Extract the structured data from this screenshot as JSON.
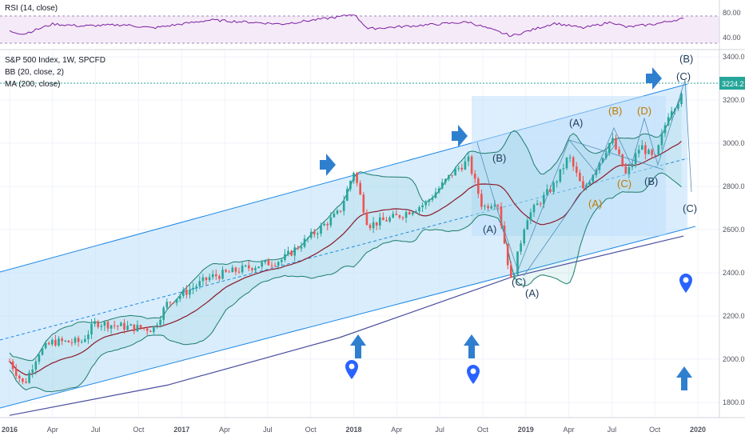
{
  "rsi_panel": {
    "label": "RSI (14, close)",
    "y_ticks": [
      "80.00",
      "40.00"
    ]
  },
  "main_panel": {
    "title": "S&P 500 Index, 1W, SPCFD",
    "bb_label": "BB (20, close, 2)",
    "ma_label": "MA (200, close)",
    "price_tag": "3224.2",
    "y_ticks": [
      "3400.0",
      "3200.0",
      "3000.0",
      "2800.0",
      "2600.0",
      "2400.0",
      "2200.0",
      "2000.0",
      "1800.0"
    ],
    "x_ticks": [
      "2016",
      "Apr",
      "Jul",
      "Oct",
      "2017",
      "Apr",
      "Jul",
      "Oct",
      "2018",
      "Apr",
      "Jul",
      "Oct",
      "2019",
      "Apr",
      "Jul",
      "Oct",
      "2020"
    ]
  },
  "wave_labels": {
    "green_a_low": "(A)",
    "green_c_low": "(C)",
    "green_a_low2": "(A)",
    "green_b_2018": "(B)",
    "green_a_2018": "(A)",
    "blue_a_2019": "(A)",
    "orange_b": "(B)",
    "orange_d": "(D)",
    "orange_a": "(A)",
    "orange_c": "(C)",
    "orange_e_b": "(B)",
    "top_b": "(B)",
    "top_c": "(C)",
    "target_c": "(C)"
  },
  "colors": {
    "price_up": "#26a69a",
    "price_down": "#ef5350",
    "bb": "#1b7d6b",
    "ma": "#2962ff",
    "channel": "#1e88e5",
    "annotation": "#2f7fcf",
    "wave_orange": "#c07a00",
    "wave_dark": "#1f3b5a",
    "rsi_line": "#7b1fa2",
    "rsi_band": "#f3e5f5"
  },
  "chart_data": {
    "type": "line",
    "title": "S&P 500 Index, 1W, SPCFD",
    "x_unit": "weekly, Jan 2016 to Dec 2019",
    "ylim": [
      1700,
      3400
    ],
    "x_range": [
      "2016-01",
      "2019-12"
    ],
    "series": [
      {
        "name": "S&P 500",
        "points": [
          [
            "2016-01",
            1990
          ],
          [
            "2016-02",
            1880
          ],
          [
            "2016-03",
            2030
          ],
          [
            "2016-04",
            2080
          ],
          [
            "2016-06",
            2080
          ],
          [
            "2016-07",
            2170
          ],
          [
            "2016-09",
            2150
          ],
          [
            "2016-11",
            2140
          ],
          [
            "2016-12",
            2260
          ],
          [
            "2017-03",
            2380
          ],
          [
            "2017-06",
            2430
          ],
          [
            "2017-08",
            2460
          ],
          [
            "2017-10",
            2570
          ],
          [
            "2017-12",
            2680
          ],
          [
            "2018-01",
            2870
          ],
          [
            "2018-02",
            2620
          ],
          [
            "2018-04",
            2660
          ],
          [
            "2018-06",
            2720
          ],
          [
            "2018-08",
            2870
          ],
          [
            "2018-09",
            2920
          ],
          [
            "2018-10",
            2700
          ],
          [
            "2018-11",
            2740
          ],
          [
            "2018-12",
            2350
          ],
          [
            "2019-01",
            2650
          ],
          [
            "2019-03",
            2810
          ],
          [
            "2019-04",
            2940
          ],
          [
            "2019-05",
            2780
          ],
          [
            "2019-07",
            3020
          ],
          [
            "2019-08",
            2850
          ],
          [
            "2019-09",
            2990
          ],
          [
            "2019-10",
            2920
          ],
          [
            "2019-11",
            3150
          ],
          [
            "2019-12",
            3224
          ]
        ]
      },
      {
        "name": "MA (200, close)",
        "points": [
          [
            "2016-01",
            1740
          ],
          [
            "2016-12",
            1880
          ],
          [
            "2017-12",
            2100
          ],
          [
            "2018-12",
            2380
          ],
          [
            "2019-12",
            2570
          ]
        ]
      }
    ],
    "rsi": [
      [
        "2016-01",
        42
      ],
      [
        "2016-02",
        35
      ],
      [
        "2016-04",
        60
      ],
      [
        "2016-06",
        55
      ],
      [
        "2016-09",
        58
      ],
      [
        "2016-11",
        50
      ],
      [
        "2017-03",
        70
      ],
      [
        "2017-08",
        60
      ],
      [
        "2017-12",
        78
      ],
      [
        "2018-01",
        85
      ],
      [
        "2018-02",
        48
      ],
      [
        "2018-05",
        55
      ],
      [
        "2018-09",
        65
      ],
      [
        "2018-12",
        30
      ],
      [
        "2019-03",
        62
      ],
      [
        "2019-05",
        50
      ],
      [
        "2019-07",
        65
      ],
      [
        "2019-08",
        52
      ],
      [
        "2019-10",
        60
      ],
      [
        "2019-12",
        74
      ]
    ],
    "rsi_levels": [
      70,
      30
    ]
  }
}
